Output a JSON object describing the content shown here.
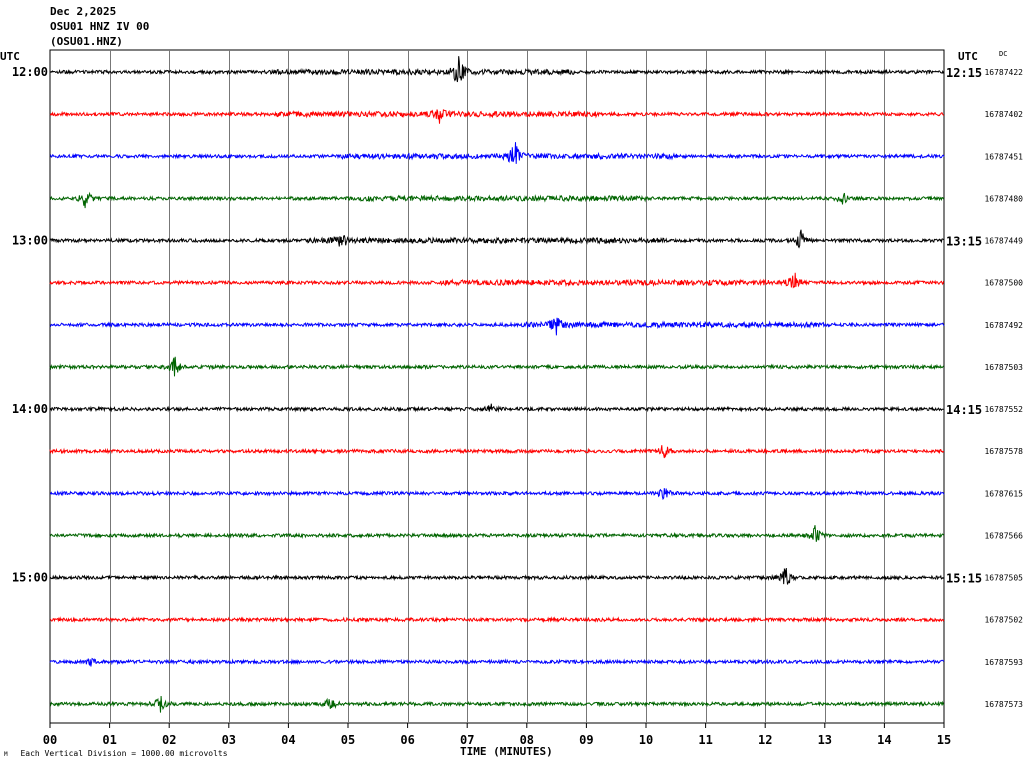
{
  "header": {
    "date": "Dec 2,2025",
    "station": "OSU01 HNZ IV 00",
    "channel": "(OSU01.HNZ)"
  },
  "utc_left": "UTC",
  "utc_right": "UTC",
  "dc_label": "DC",
  "footer_mark": "M",
  "footer": "Each Vertical Division = 1000.00 microvolts",
  "chart_data": {
    "type": "line",
    "title": "",
    "xlabel": "TIME (MINUTES)",
    "ylabel": "",
    "xlim": [
      0,
      15
    ],
    "x_ticks": [
      "00",
      "01",
      "02",
      "03",
      "04",
      "05",
      "06",
      "07",
      "08",
      "09",
      "10",
      "11",
      "12",
      "13",
      "14",
      "15"
    ],
    "left_time_labels": [
      "12:00",
      "",
      "",
      "",
      "13:00",
      "",
      "",
      "",
      "14:00",
      "",
      "",
      "",
      "15:00",
      "",
      "",
      ""
    ],
    "right_time_labels": [
      "12:15",
      "",
      "",
      "",
      "13:15",
      "",
      "",
      "",
      "14:15",
      "",
      "",
      "",
      "15:15",
      "",
      "",
      ""
    ],
    "dc_offsets": [
      "16787422",
      "16787402",
      "16787451",
      "16787480",
      "16787449",
      "16787500",
      "16787492",
      "16787503",
      "16787552",
      "16787578",
      "16787615",
      "16787566",
      "16787505",
      "16787502",
      "16787593",
      "16787573"
    ],
    "trace_colors": [
      "#000000",
      "#ff0000",
      "#0000ff",
      "#006400"
    ],
    "vertical_division_microvolts": 1000.0,
    "events": [
      {
        "trace": 0,
        "minute": 6.85,
        "amplitude": 16
      },
      {
        "trace": 1,
        "minute": 6.55,
        "amplitude": 9
      },
      {
        "trace": 2,
        "minute": 7.8,
        "amplitude": 14
      },
      {
        "trace": 3,
        "minute": 0.6,
        "amplitude": 10
      },
      {
        "trace": 3,
        "minute": 13.3,
        "amplitude": 7
      },
      {
        "trace": 4,
        "minute": 4.9,
        "amplitude": 8
      },
      {
        "trace": 4,
        "minute": 12.6,
        "amplitude": 10
      },
      {
        "trace": 5,
        "minute": 12.5,
        "amplitude": 9
      },
      {
        "trace": 6,
        "minute": 8.5,
        "amplitude": 9
      },
      {
        "trace": 7,
        "minute": 2.1,
        "amplitude": 11
      },
      {
        "trace": 8,
        "minute": 7.4,
        "amplitude": 5
      },
      {
        "trace": 9,
        "minute": 10.3,
        "amplitude": 8
      },
      {
        "trace": 10,
        "minute": 10.3,
        "amplitude": 6
      },
      {
        "trace": 11,
        "minute": 12.85,
        "amplitude": 11
      },
      {
        "trace": 12,
        "minute": 12.35,
        "amplitude": 11
      },
      {
        "trace": 14,
        "minute": 0.7,
        "amplitude": 4
      },
      {
        "trace": 15,
        "minute": 1.85,
        "amplitude": 8
      },
      {
        "trace": 15,
        "minute": 4.7,
        "amplitude": 7
      }
    ],
    "active_windows": [
      {
        "trace": 0,
        "from": 3.7,
        "to": 8.8
      },
      {
        "trace": 1,
        "from": 3.8,
        "to": 9.2
      },
      {
        "trace": 2,
        "from": 4.9,
        "to": 10.6
      },
      {
        "trace": 3,
        "from": 5.2,
        "to": 10.0
      },
      {
        "trace": 4,
        "from": 4.3,
        "to": 10.3
      },
      {
        "trace": 5,
        "from": 6.5,
        "to": 12.6
      },
      {
        "trace": 6,
        "from": 7.9,
        "to": 13.0
      }
    ]
  }
}
